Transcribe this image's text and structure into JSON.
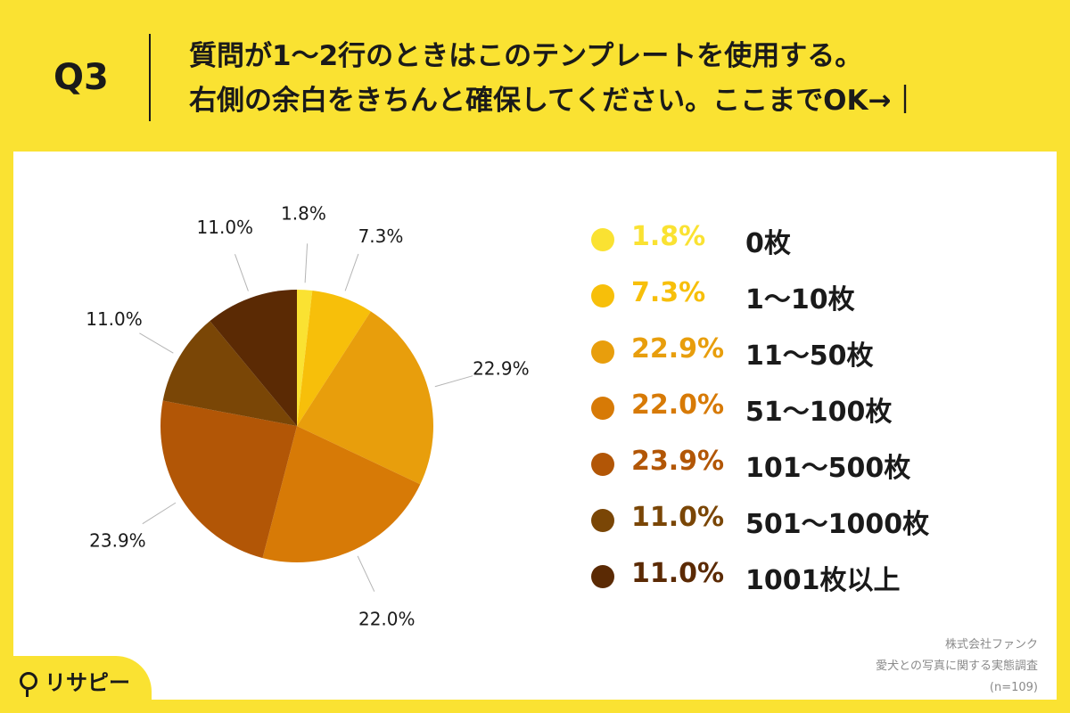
{
  "header": {
    "question_number": "Q3",
    "question_line1": "質問が1〜2行のときはこのテンプレートを使用する。",
    "question_line2": "右側の余白をきちんと確保してください。ここまでOK→｜"
  },
  "chart_data": {
    "type": "pie",
    "title": "",
    "categories": [
      "0枚",
      "1〜10枚",
      "11〜50枚",
      "51〜100枚",
      "101〜500枚",
      "501〜1000枚",
      "1001枚以上"
    ],
    "values": [
      1.8,
      7.3,
      22.9,
      22.0,
      23.9,
      11.0,
      11.0
    ],
    "labels": [
      "1.8%",
      "7.3%",
      "22.9%",
      "22.0%",
      "23.9%",
      "11.0%",
      "11.0%"
    ],
    "colors": [
      "#fae232",
      "#f7bf0a",
      "#e89e0c",
      "#d77a06",
      "#b25606",
      "#7a4606",
      "#5b2a04"
    ],
    "legend_placement": "right",
    "start": "12 o'clock, clockwise"
  },
  "source": {
    "line1": "株式会社ファンク",
    "line2": "愛犬との写真に関する実態調査",
    "line3": "(n=109)"
  },
  "logo": {
    "text": "リサピー",
    "icon": "magnifier-icon"
  }
}
